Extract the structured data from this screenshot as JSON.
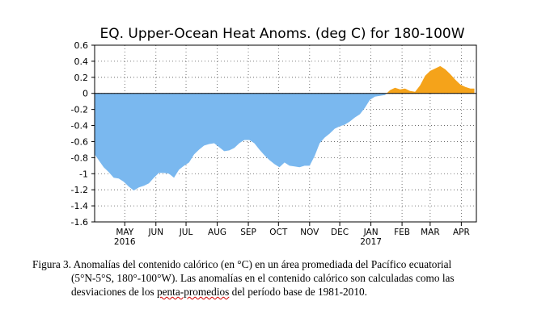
{
  "chart_data": {
    "type": "area",
    "title": "EQ. Upper-Ocean Heat Anoms. (deg C) for 180-100W",
    "xlabel": "",
    "ylabel": "",
    "ylim": [
      -1.6,
      0.6
    ],
    "yticks": [
      0.6,
      0.4,
      0.2,
      0,
      -0.2,
      -0.4,
      -0.6,
      -0.8,
      -1,
      -1.2,
      -1.4,
      -1.6
    ],
    "ytick_labels": [
      "0.6",
      "0.4",
      "0.2",
      "0",
      "-0.2",
      "-0.4",
      "-0.6",
      "-0.8",
      "-1",
      "-1.2",
      "-1.4",
      "-1.6"
    ],
    "xlim": [
      "2016-04-15",
      "2017-04-30"
    ],
    "xticks": [
      {
        "date": "2016-05-15",
        "label": "MAY",
        "year": "2016"
      },
      {
        "date": "2016-06-15",
        "label": "JUN",
        "year": ""
      },
      {
        "date": "2016-07-15",
        "label": "JUL",
        "year": ""
      },
      {
        "date": "2016-08-15",
        "label": "AUG",
        "year": ""
      },
      {
        "date": "2016-09-15",
        "label": "SEP",
        "year": ""
      },
      {
        "date": "2016-10-15",
        "label": "OCT",
        "year": ""
      },
      {
        "date": "2016-11-15",
        "label": "NOV",
        "year": ""
      },
      {
        "date": "2016-12-15",
        "label": "DEC",
        "year": ""
      },
      {
        "date": "2017-01-15",
        "label": "JAN",
        "year": "2017"
      },
      {
        "date": "2017-02-15",
        "label": "FEB",
        "year": ""
      },
      {
        "date": "2017-03-15",
        "label": "MAR",
        "year": ""
      },
      {
        "date": "2017-04-15",
        "label": "APR",
        "year": ""
      }
    ],
    "grid": true,
    "positive_color": "#f5a31a",
    "negative_color": "#7ab8ef",
    "series": [
      {
        "points": [
          [
            "2016-04-15",
            -0.76
          ],
          [
            "2016-04-19",
            -0.83
          ],
          [
            "2016-04-24",
            -0.92
          ],
          [
            "2016-04-29",
            -0.98
          ],
          [
            "2016-05-04",
            -1.05
          ],
          [
            "2016-05-09",
            -1.06
          ],
          [
            "2016-05-14",
            -1.1
          ],
          [
            "2016-05-19",
            -1.16
          ],
          [
            "2016-05-24",
            -1.21
          ],
          [
            "2016-05-29",
            -1.17
          ],
          [
            "2016-06-03",
            -1.15
          ],
          [
            "2016-06-08",
            -1.12
          ],
          [
            "2016-06-13",
            -1.05
          ],
          [
            "2016-06-18",
            -0.99
          ],
          [
            "2016-06-23",
            -0.99
          ],
          [
            "2016-06-28",
            -1.0
          ],
          [
            "2016-07-03",
            -1.05
          ],
          [
            "2016-07-08",
            -0.95
          ],
          [
            "2016-07-13",
            -0.9
          ],
          [
            "2016-07-18",
            -0.86
          ],
          [
            "2016-07-23",
            -0.76
          ],
          [
            "2016-07-28",
            -0.7
          ],
          [
            "2016-08-02",
            -0.65
          ],
          [
            "2016-08-07",
            -0.63
          ],
          [
            "2016-08-12",
            -0.62
          ],
          [
            "2016-08-17",
            -0.67
          ],
          [
            "2016-08-22",
            -0.72
          ],
          [
            "2016-08-27",
            -0.71
          ],
          [
            "2016-09-01",
            -0.68
          ],
          [
            "2016-09-06",
            -0.62
          ],
          [
            "2016-09-11",
            -0.58
          ],
          [
            "2016-09-16",
            -0.58
          ],
          [
            "2016-09-21",
            -0.62
          ],
          [
            "2016-09-26",
            -0.7
          ],
          [
            "2016-10-01",
            -0.77
          ],
          [
            "2016-10-06",
            -0.83
          ],
          [
            "2016-10-11",
            -0.88
          ],
          [
            "2016-10-16",
            -0.92
          ],
          [
            "2016-10-21",
            -0.86
          ],
          [
            "2016-10-26",
            -0.9
          ],
          [
            "2016-10-31",
            -0.91
          ],
          [
            "2016-11-05",
            -0.92
          ],
          [
            "2016-11-10",
            -0.9
          ],
          [
            "2016-11-15",
            -0.9
          ],
          [
            "2016-11-20",
            -0.78
          ],
          [
            "2016-11-25",
            -0.62
          ],
          [
            "2016-11-30",
            -0.55
          ],
          [
            "2016-12-05",
            -0.5
          ],
          [
            "2016-12-10",
            -0.44
          ],
          [
            "2016-12-15",
            -0.41
          ],
          [
            "2016-12-20",
            -0.39
          ],
          [
            "2016-12-25",
            -0.35
          ],
          [
            "2016-12-30",
            -0.3
          ],
          [
            "2017-01-04",
            -0.26
          ],
          [
            "2017-01-09",
            -0.18
          ],
          [
            "2017-01-14",
            -0.08
          ],
          [
            "2017-01-19",
            -0.04
          ],
          [
            "2017-01-24",
            -0.03
          ],
          [
            "2017-01-29",
            -0.02
          ],
          [
            "2017-02-03",
            0.04
          ],
          [
            "2017-02-08",
            0.07
          ],
          [
            "2017-02-13",
            0.05
          ],
          [
            "2017-02-18",
            0.06
          ],
          [
            "2017-02-23",
            0.03
          ],
          [
            "2017-02-28",
            0.02
          ],
          [
            "2017-03-05",
            0.1
          ],
          [
            "2017-03-10",
            0.22
          ],
          [
            "2017-03-15",
            0.28
          ],
          [
            "2017-03-20",
            0.31
          ],
          [
            "2017-03-25",
            0.34
          ],
          [
            "2017-03-30",
            0.3
          ],
          [
            "2017-04-04",
            0.24
          ],
          [
            "2017-04-09",
            0.17
          ],
          [
            "2017-04-14",
            0.11
          ],
          [
            "2017-04-19",
            0.08
          ],
          [
            "2017-04-24",
            0.06
          ],
          [
            "2017-04-28",
            0.06
          ]
        ]
      }
    ]
  },
  "caption": {
    "line1": "Figura 3. Anomalías del contenido calórico (en °C) en un área promediada del Pacífico ecuatorial",
    "line2": "(5°N-5°S, 180°-100°W). Las anomalías en el contenido calórico son calculadas como las",
    "line3_before": "desviaciones de los ",
    "line3_underlined": "penta-promedios",
    "line3_after": " del período base de 1981-2010."
  }
}
